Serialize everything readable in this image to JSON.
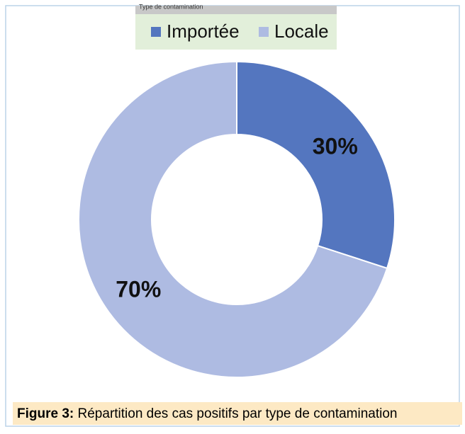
{
  "chart_data": {
    "type": "donut",
    "legend_title": "Type de contamination",
    "categories": [
      "Importée",
      "Locale"
    ],
    "values": [
      30,
      70
    ],
    "value_labels": [
      "30%",
      "70%"
    ],
    "colors": [
      "#5476bf",
      "#aebbe2"
    ],
    "caption": {
      "label": "Figure 3:",
      "text": "Répartition des cas positifs par type de contamination"
    }
  }
}
